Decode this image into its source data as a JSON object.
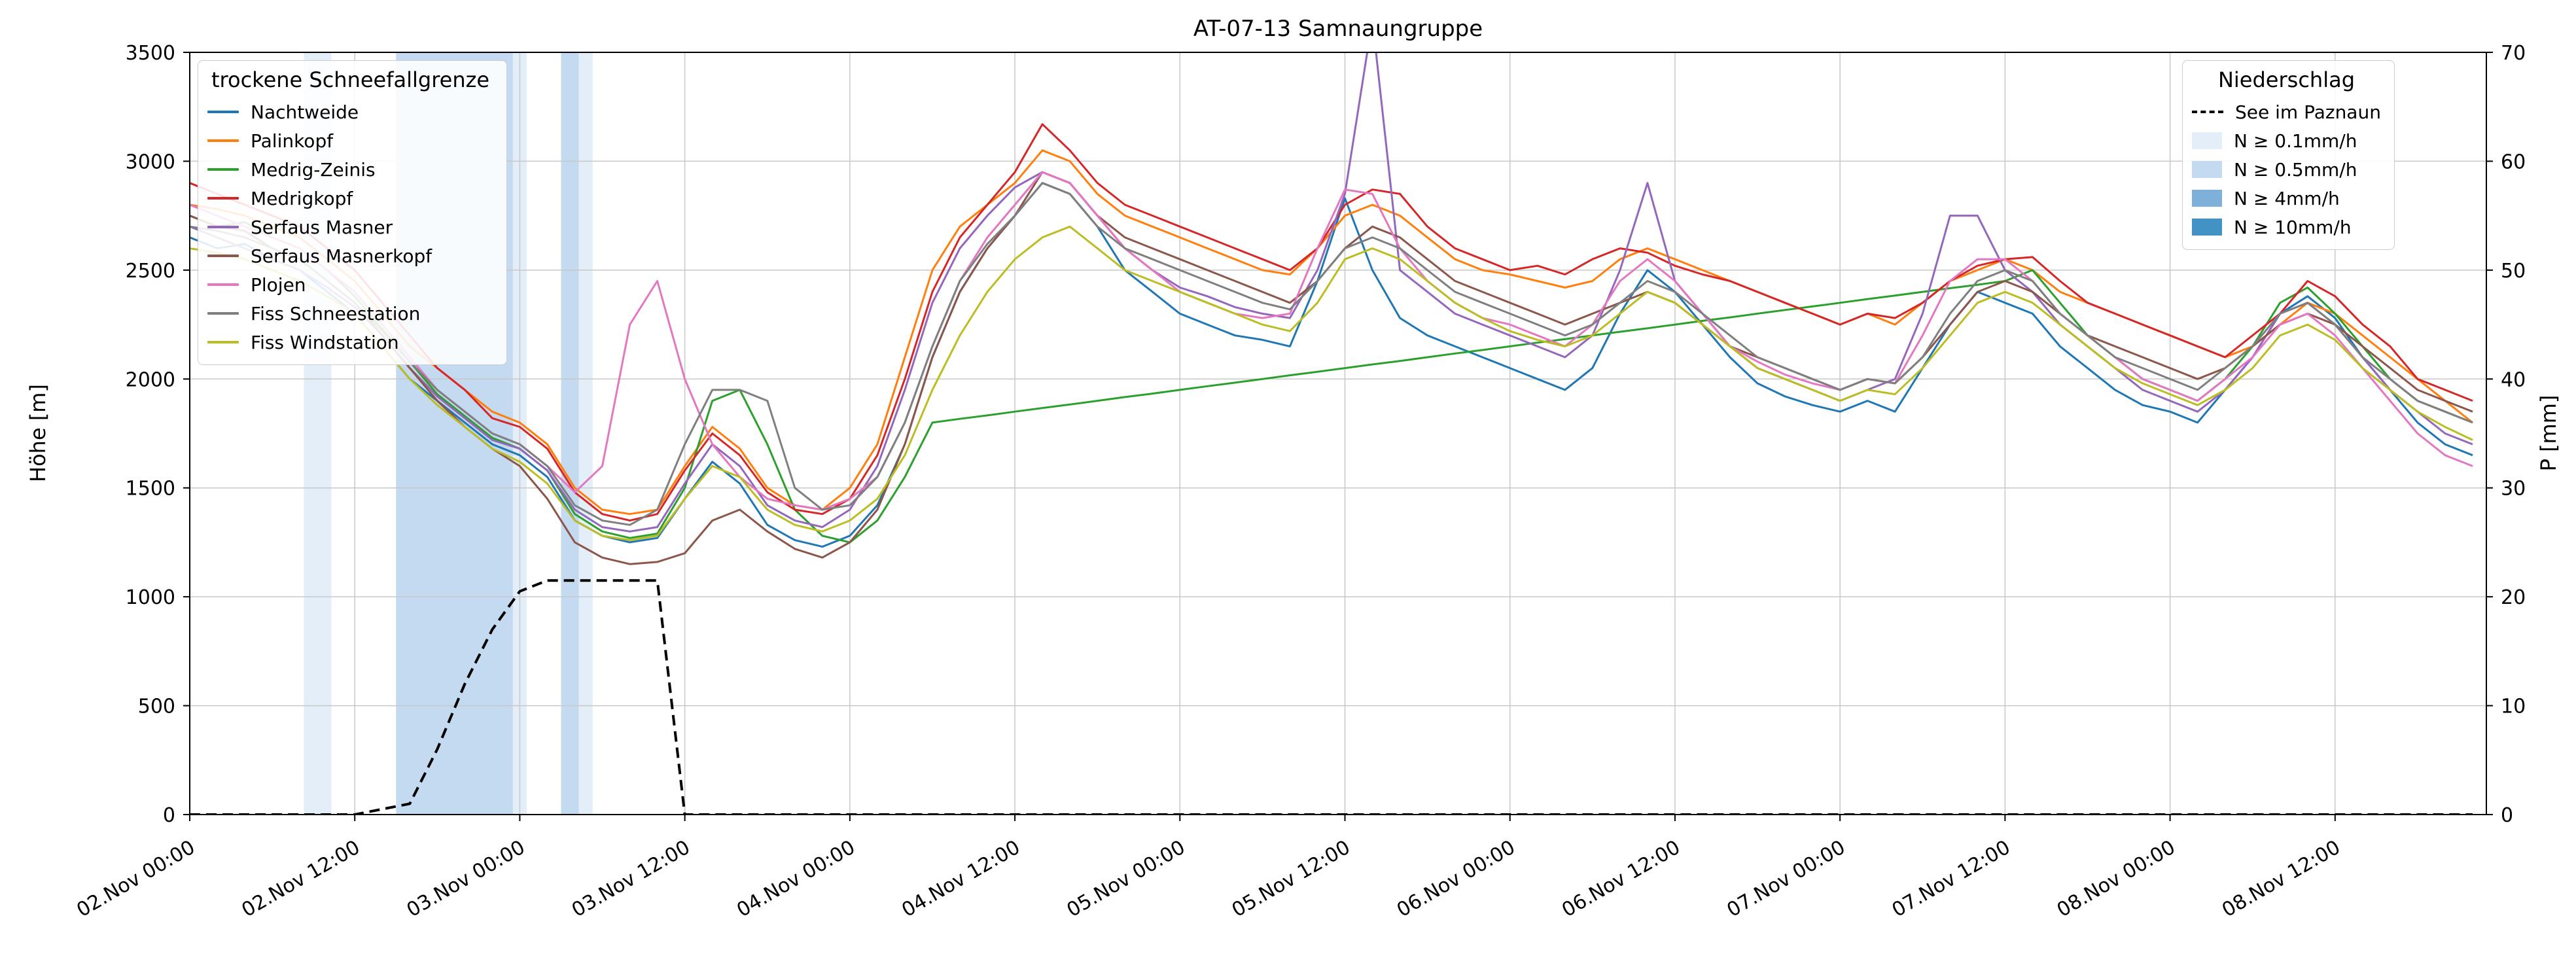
{
  "title": "AT-07-13 Samnaungruppe",
  "axes": {
    "y_left": {
      "label": "Höhe [m]",
      "min": 0,
      "max": 3500,
      "step": 500
    },
    "y_right": {
      "label": "P [mm]",
      "min": 0,
      "max": 70,
      "step": 10
    },
    "x": {
      "min": 0,
      "max": 167,
      "tick_step": 12,
      "tick_labels": [
        "02.Nov 00:00",
        "02.Nov 12:00",
        "03.Nov 00:00",
        "03.Nov 12:00",
        "04.Nov 00:00",
        "04.Nov 12:00",
        "05.Nov 00:00",
        "05.Nov 12:00",
        "06.Nov 00:00",
        "06.Nov 12:00",
        "07.Nov 00:00",
        "07.Nov 12:00",
        "08.Nov 00:00",
        "08.Nov 12:00"
      ]
    }
  },
  "legend_snowline": {
    "title": "trockene Schneefallgrenze",
    "items": [
      {
        "label": "Nachtweide",
        "color": "#1f77b4"
      },
      {
        "label": "Palinkopf",
        "color": "#ff7f0e"
      },
      {
        "label": "Medrig-Zeinis",
        "color": "#2ca02c"
      },
      {
        "label": "Medrigkopf",
        "color": "#d62728"
      },
      {
        "label": "Serfaus Masner",
        "color": "#9467bd"
      },
      {
        "label": "Serfaus Masnerkopf",
        "color": "#8c564b"
      },
      {
        "label": "Plojen",
        "color": "#e377c2"
      },
      {
        "label": "Fiss Schneestation",
        "color": "#7f7f7f"
      },
      {
        "label": "Fiss Windstation",
        "color": "#bcbd22"
      }
    ]
  },
  "legend_precip": {
    "title": "Niederschlag",
    "dashed_label": "See im Paznaun",
    "levels": [
      {
        "label": "N ≥ 0.1mm/h",
        "color": "#e3eef9"
      },
      {
        "label": "N ≥ 0.5mm/h",
        "color": "#c3daf0"
      },
      {
        "label": "N ≥ 4mm/h",
        "color": "#7eb1d9"
      },
      {
        "label": "N ≥ 10mm/h",
        "color": "#4292c6"
      }
    ]
  },
  "grid_color": "#c8c8c8",
  "chart_data": {
    "type": "line",
    "x_unit": "hours since 02.Nov 00:00",
    "x_hours": [
      0,
      2,
      4,
      6,
      8,
      10,
      12,
      14,
      16,
      18,
      20,
      22,
      24,
      26,
      28,
      30,
      32,
      34,
      36,
      38,
      40,
      42,
      44,
      46,
      48,
      50,
      52,
      54,
      56,
      58,
      60,
      62,
      64,
      66,
      68,
      70,
      72,
      74,
      76,
      78,
      80,
      82,
      84,
      86,
      88,
      90,
      92,
      94,
      96,
      98,
      100,
      102,
      104,
      106,
      108,
      110,
      112,
      114,
      116,
      118,
      120,
      122,
      124,
      126,
      128,
      130,
      132,
      134,
      136,
      138,
      140,
      142,
      144,
      146,
      148,
      150,
      152,
      154,
      156,
      158,
      160,
      162,
      164,
      166
    ],
    "precip_bands": [
      {
        "t0": 8.3,
        "t1": 10.3,
        "level": 0
      },
      {
        "t0": 15.0,
        "t1": 23.5,
        "level": 1
      },
      {
        "t0": 23.5,
        "t1": 24.5,
        "level": 0
      },
      {
        "t0": 27.0,
        "t1": 28.3,
        "level": 1
      },
      {
        "t0": 28.3,
        "t1": 29.3,
        "level": 0
      }
    ],
    "series": [
      {
        "name": "Nachtweide",
        "color": "#1f77b4",
        "axis": "left",
        "dashed": false,
        "values": [
          2650,
          2600,
          2620,
          2550,
          2500,
          2400,
          2300,
          2150,
          2000,
          1900,
          1800,
          1700,
          1650,
          1550,
          1350,
          1280,
          1250,
          1270,
          1450,
          1620,
          1520,
          1330,
          1260,
          1230,
          1280,
          1420,
          1700,
          2100,
          2400,
          2600,
          2750,
          2900,
          2850,
          2700,
          2500,
          2400,
          2300,
          2250,
          2200,
          2180,
          2150,
          2450,
          2830,
          2500,
          2280,
          2200,
          2150,
          2100,
          2050,
          2000,
          1950,
          2050,
          2300,
          2500,
          2400,
          2250,
          2100,
          1980,
          1920,
          1880,
          1850,
          1900,
          1850,
          2050,
          2250,
          2400,
          2350,
          2300,
          2150,
          2050,
          1950,
          1880,
          1850,
          1800,
          1950,
          2100,
          2300,
          2380,
          2280,
          2100,
          1950,
          1800,
          1700,
          1650
        ]
      },
      {
        "name": "Palinkopf",
        "color": "#ff7f0e",
        "axis": "left",
        "dashed": false,
        "values": [
          2800,
          2780,
          2750,
          2700,
          2650,
          2550,
          2450,
          2300,
          2150,
          2050,
          1950,
          1850,
          1800,
          1700,
          1500,
          1400,
          1380,
          1400,
          1600,
          1780,
          1680,
          1500,
          1420,
          1400,
          1500,
          1700,
          2100,
          2500,
          2700,
          2800,
          2900,
          3050,
          3000,
          2850,
          2750,
          2700,
          2650,
          2600,
          2550,
          2500,
          2480,
          2600,
          2750,
          2800,
          2750,
          2650,
          2550,
          2500,
          2480,
          2450,
          2420,
          2450,
          2550,
          2600,
          2550,
          2500,
          2450,
          2400,
          2350,
          2300,
          2250,
          2300,
          2250,
          2350,
          2450,
          2500,
          2550,
          2500,
          2400,
          2350,
          2300,
          2250,
          2200,
          2150,
          2100,
          2150,
          2250,
          2350,
          2300,
          2200,
          2100,
          2000,
          1900,
          1800
        ]
      },
      {
        "name": "Medrig-Zeinis",
        "color": "#2ca02c",
        "axis": "left",
        "dashed": false,
        "values": [
          2750,
          2700,
          2720,
          2650,
          2600,
          2500,
          2380,
          2230,
          2080,
          1930,
          1830,
          1730,
          1680,
          1580,
          1380,
          1300,
          1270,
          1290,
          1500,
          1900,
          1950,
          1700,
          1400,
          1280,
          1250,
          1350,
          1550,
          1800,
          1817,
          1833,
          1850,
          1867,
          1883,
          1900,
          1917,
          1933,
          1950,
          1967,
          1983,
          2000,
          2017,
          2033,
          2050,
          2067,
          2083,
          2100,
          2117,
          2133,
          2150,
          2167,
          2183,
          2200,
          2217,
          2233,
          2250,
          2267,
          2283,
          2300,
          2317,
          2333,
          2350,
          2367,
          2383,
          2400,
          2417,
          2433,
          2450,
          2500,
          2350,
          2200,
          2100,
          2000,
          1950,
          1900,
          2000,
          2150,
          2350,
          2420,
          2300,
          2150,
          2000,
          1900,
          1850,
          1800
        ]
      },
      {
        "name": "Medrigkopf",
        "color": "#d62728",
        "axis": "left",
        "dashed": false,
        "values": [
          2900,
          2850,
          2800,
          2750,
          2700,
          2600,
          2500,
          2350,
          2200,
          2050,
          1950,
          1820,
          1780,
          1680,
          1480,
          1380,
          1350,
          1380,
          1580,
          1750,
          1650,
          1480,
          1400,
          1380,
          1450,
          1650,
          2000,
          2400,
          2650,
          2800,
          2950,
          3170,
          3050,
          2900,
          2800,
          2750,
          2700,
          2650,
          2600,
          2550,
          2500,
          2600,
          2800,
          2870,
          2850,
          2700,
          2600,
          2550,
          2500,
          2520,
          2480,
          2550,
          2600,
          2580,
          2520,
          2480,
          2450,
          2400,
          2350,
          2300,
          2250,
          2300,
          2280,
          2350,
          2450,
          2520,
          2550,
          2560,
          2450,
          2350,
          2300,
          2250,
          2200,
          2150,
          2100,
          2200,
          2300,
          2450,
          2380,
          2250,
          2150,
          2000,
          1950,
          1900
        ]
      },
      {
        "name": "Serfaus Masner",
        "color": "#9467bd",
        "axis": "left",
        "dashed": false,
        "values": [
          2700,
          2650,
          2600,
          2550,
          2500,
          2420,
          2330,
          2200,
          2050,
          1920,
          1820,
          1720,
          1680,
          1580,
          1400,
          1320,
          1300,
          1320,
          1520,
          1700,
          1600,
          1420,
          1350,
          1320,
          1400,
          1600,
          1950,
          2350,
          2600,
          2750,
          2880,
          2950,
          2900,
          2750,
          2600,
          2500,
          2420,
          2380,
          2330,
          2300,
          2280,
          2500,
          2850,
          3650,
          2500,
          2400,
          2300,
          2250,
          2200,
          2150,
          2100,
          2200,
          2500,
          2900,
          2450,
          2300,
          2150,
          2050,
          2000,
          1950,
          1900,
          1950,
          2000,
          2300,
          2750,
          2750,
          2500,
          2400,
          2250,
          2150,
          2050,
          1950,
          1900,
          1850,
          1950,
          2100,
          2300,
          2350,
          2250,
          2100,
          1950,
          1850,
          1750,
          1700
        ]
      },
      {
        "name": "Serfaus Masnerkopf",
        "color": "#8c564b",
        "axis": "left",
        "dashed": false,
        "values": [
          2750,
          2700,
          2680,
          2600,
          2550,
          2450,
          2350,
          2200,
          2050,
          1900,
          1780,
          1680,
          1600,
          1450,
          1250,
          1180,
          1150,
          1160,
          1200,
          1350,
          1400,
          1300,
          1220,
          1180,
          1250,
          1400,
          1700,
          2100,
          2400,
          2600,
          2750,
          2950,
          2900,
          2750,
          2650,
          2600,
          2550,
          2500,
          2450,
          2400,
          2350,
          2450,
          2600,
          2700,
          2650,
          2550,
          2450,
          2400,
          2350,
          2300,
          2250,
          2300,
          2350,
          2400,
          2350,
          2250,
          2150,
          2100,
          2050,
          2000,
          1950,
          2000,
          1980,
          2100,
          2250,
          2400,
          2450,
          2400,
          2300,
          2200,
          2150,
          2100,
          2050,
          2000,
          2050,
          2150,
          2250,
          2300,
          2250,
          2150,
          2050,
          1950,
          1900,
          1850
        ]
      },
      {
        "name": "Plojen",
        "color": "#e377c2",
        "axis": "left",
        "dashed": false,
        "values": [
          2800,
          2750,
          2700,
          2650,
          2600,
          2500,
          2400,
          2250,
          2100,
          1950,
          1850,
          1750,
          1700,
          1600,
          1480,
          1600,
          2250,
          2450,
          2000,
          1700,
          1550,
          1450,
          1420,
          1400,
          1450,
          1550,
          1800,
          2150,
          2450,
          2650,
          2800,
          2950,
          2900,
          2750,
          2600,
          2500,
          2400,
          2350,
          2300,
          2280,
          2300,
          2600,
          2870,
          2850,
          2600,
          2450,
          2350,
          2280,
          2250,
          2200,
          2150,
          2250,
          2450,
          2550,
          2450,
          2300,
          2150,
          2080,
          2020,
          1980,
          1950,
          2000,
          1980,
          2200,
          2450,
          2550,
          2550,
          2450,
          2300,
          2200,
          2100,
          2000,
          1950,
          1900,
          2000,
          2100,
          2250,
          2300,
          2200,
          2050,
          1900,
          1750,
          1650,
          1600
        ]
      },
      {
        "name": "Fiss Schneestation",
        "color": "#7f7f7f",
        "axis": "left",
        "dashed": false,
        "values": [
          2700,
          2680,
          2650,
          2600,
          2550,
          2450,
          2350,
          2220,
          2080,
          1950,
          1850,
          1750,
          1700,
          1600,
          1420,
          1350,
          1330,
          1400,
          1700,
          1950,
          1950,
          1900,
          1500,
          1400,
          1420,
          1550,
          1800,
          2150,
          2450,
          2620,
          2750,
          2900,
          2850,
          2700,
          2600,
          2550,
          2500,
          2450,
          2400,
          2350,
          2320,
          2450,
          2600,
          2650,
          2600,
          2500,
          2400,
          2350,
          2300,
          2250,
          2200,
          2250,
          2350,
          2450,
          2400,
          2300,
          2200,
          2100,
          2050,
          2000,
          1950,
          2000,
          1980,
          2100,
          2300,
          2450,
          2500,
          2450,
          2300,
          2200,
          2100,
          2050,
          2000,
          1950,
          2050,
          2150,
          2300,
          2350,
          2250,
          2100,
          2000,
          1900,
          1850,
          1800
        ]
      },
      {
        "name": "Fiss Windstation",
        "color": "#bcbd22",
        "axis": "left",
        "dashed": false,
        "values": [
          2600,
          2580,
          2550,
          2500,
          2450,
          2380,
          2300,
          2150,
          2000,
          1880,
          1780,
          1680,
          1620,
          1520,
          1350,
          1280,
          1260,
          1280,
          1450,
          1600,
          1550,
          1400,
          1330,
          1300,
          1350,
          1450,
          1650,
          1950,
          2200,
          2400,
          2550,
          2650,
          2700,
          2600,
          2500,
          2450,
          2400,
          2350,
          2300,
          2250,
          2220,
          2350,
          2550,
          2600,
          2550,
          2450,
          2350,
          2280,
          2220,
          2180,
          2150,
          2200,
          2300,
          2400,
          2350,
          2250,
          2150,
          2050,
          2000,
          1950,
          1900,
          1950,
          1930,
          2050,
          2200,
          2350,
          2400,
          2350,
          2250,
          2150,
          2050,
          1980,
          1930,
          1880,
          1950,
          2050,
          2200,
          2250,
          2180,
          2050,
          1950,
          1850,
          1780,
          1720
        ]
      },
      {
        "name": "See im Paznaun",
        "color": "#000000",
        "axis": "right",
        "dashed": true,
        "values": [
          0,
          0,
          0,
          0,
          0,
          0,
          0,
          0.5,
          1,
          6,
          12,
          17,
          20.5,
          21.5,
          21.5,
          21.5,
          21.5,
          21.5,
          0,
          0,
          0,
          0,
          0,
          0,
          0,
          0,
          0,
          0,
          0,
          0,
          0,
          0,
          0,
          0,
          0,
          0,
          0,
          0,
          0,
          0,
          0,
          0,
          0,
          0,
          0,
          0,
          0,
          0,
          0,
          0,
          0,
          0,
          0,
          0,
          0,
          0,
          0,
          0,
          0,
          0,
          0,
          0,
          0,
          0,
          0,
          0,
          0,
          0,
          0,
          0,
          0,
          0,
          0,
          0,
          0,
          0,
          0,
          0,
          0,
          0,
          0,
          0,
          0,
          0
        ]
      }
    ]
  }
}
